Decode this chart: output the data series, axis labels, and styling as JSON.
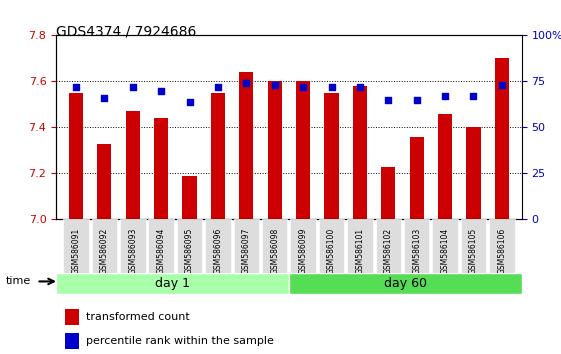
{
  "title": "GDS4374 / 7924686",
  "samples": [
    "GSM586091",
    "GSM586092",
    "GSM586093",
    "GSM586094",
    "GSM586095",
    "GSM586096",
    "GSM586097",
    "GSM586098",
    "GSM586099",
    "GSM586100",
    "GSM586101",
    "GSM586102",
    "GSM586103",
    "GSM586104",
    "GSM586105",
    "GSM586106"
  ],
  "transformed_count": [
    7.55,
    7.33,
    7.47,
    7.44,
    7.19,
    7.55,
    7.64,
    7.6,
    7.6,
    7.55,
    7.58,
    7.23,
    7.36,
    7.46,
    7.4,
    7.7
  ],
  "percentile_rank": [
    72,
    66,
    72,
    70,
    64,
    72,
    74,
    73,
    72,
    72,
    72,
    65,
    65,
    67,
    67,
    73
  ],
  "day1_samples": 8,
  "day60_samples": 8,
  "ylim_left": [
    7.0,
    7.8
  ],
  "ylim_right": [
    0,
    100
  ],
  "yticks_left": [
    7.0,
    7.2,
    7.4,
    7.6,
    7.8
  ],
  "yticks_right": [
    0,
    25,
    50,
    75,
    100
  ],
  "bar_color": "#cc0000",
  "dot_color": "#0000cc",
  "day1_color": "#aaffaa",
  "day60_color": "#55dd55",
  "bg_color": "#ffffff",
  "grid_color": "#000000",
  "label_bg": "#dddddd",
  "legend_bar_label": "transformed count",
  "legend_dot_label": "percentile rank within the sample",
  "day1_label": "day 1",
  "day60_label": "day 60",
  "time_label": "time"
}
